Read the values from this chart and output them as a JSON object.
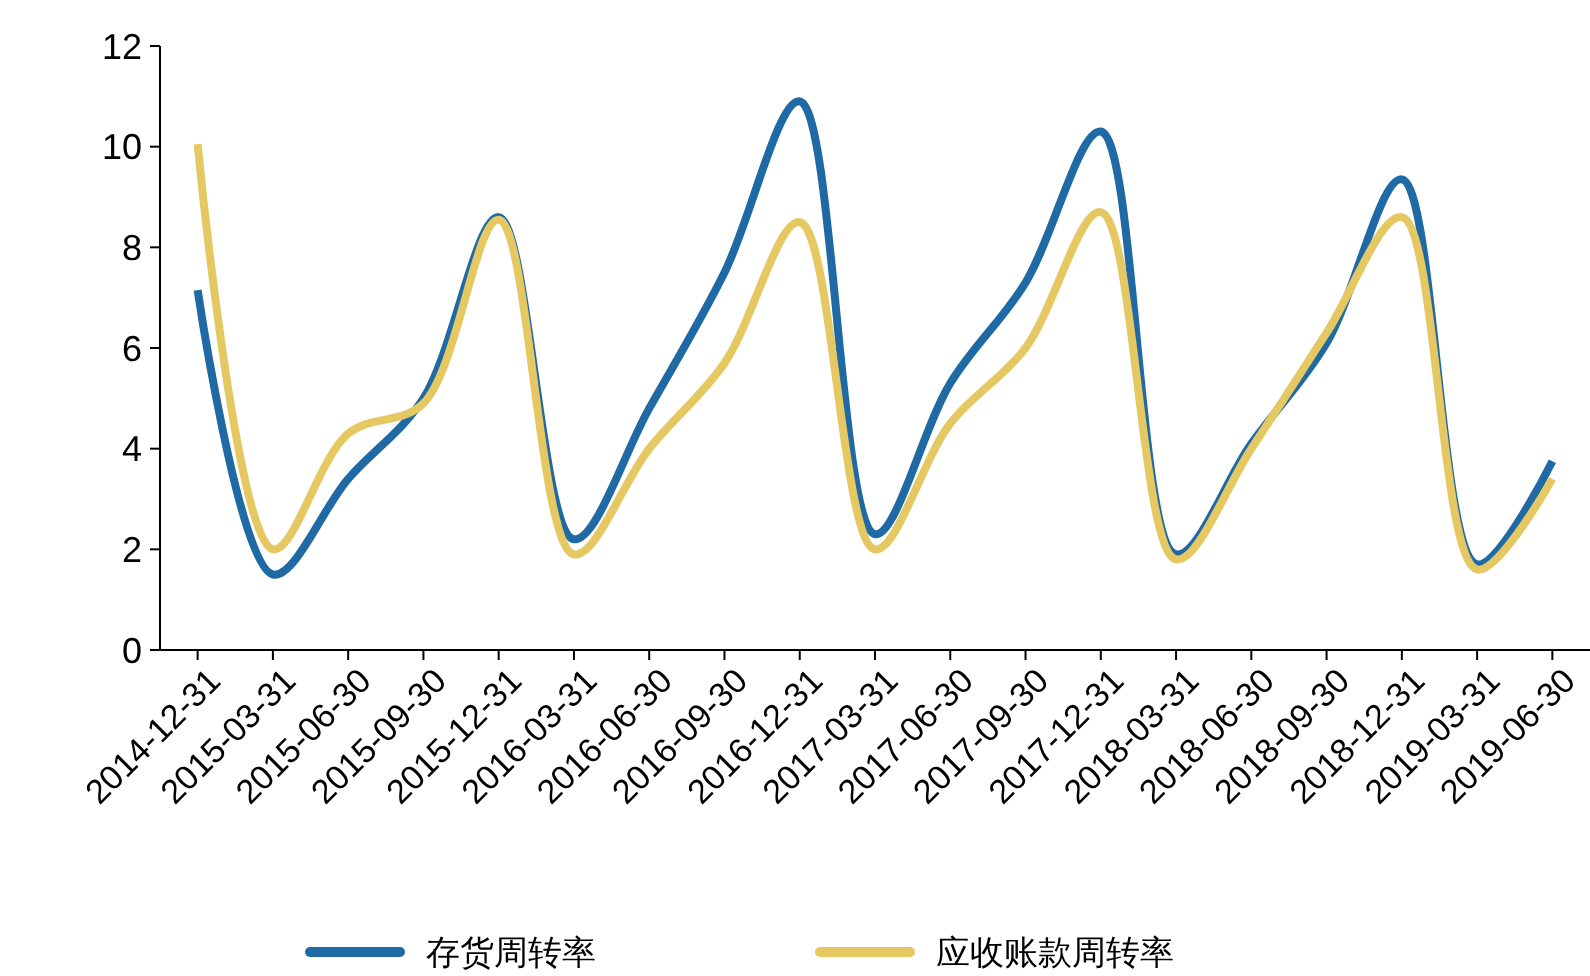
{
  "chart_data": {
    "type": "line",
    "categories": [
      "2014-12-31",
      "2015-03-31",
      "2015-06-30",
      "2015-09-30",
      "2015-12-31",
      "2016-03-31",
      "2016-06-30",
      "2016-09-30",
      "2016-12-31",
      "2017-03-31",
      "2017-06-30",
      "2017-09-30",
      "2017-12-31",
      "2018-03-31",
      "2018-06-30",
      "2018-09-30",
      "2018-12-31",
      "2019-03-31",
      "2019-06-30"
    ],
    "series": [
      {
        "name": "存货周转率",
        "color": "#1f6aa5",
        "values": [
          7.15,
          1.5,
          3.4,
          5.0,
          8.6,
          2.2,
          4.8,
          7.5,
          10.9,
          2.3,
          5.3,
          7.3,
          10.3,
          1.9,
          4.1,
          6.1,
          9.35,
          1.7,
          3.75
        ]
      },
      {
        "name": "应收账款周转率",
        "color": "#e5c862",
        "values": [
          10.05,
          2.0,
          4.3,
          4.9,
          8.55,
          1.9,
          4.0,
          5.7,
          8.5,
          2.0,
          4.5,
          6.0,
          8.7,
          1.8,
          4.0,
          6.3,
          8.6,
          1.6,
          3.4
        ]
      }
    ],
    "ylim": [
      0,
      12
    ],
    "yticks": [
      0,
      2,
      4,
      6,
      8,
      10,
      12
    ],
    "grid": false,
    "legend": "bottom",
    "marker": "none",
    "line_style": "solid"
  }
}
